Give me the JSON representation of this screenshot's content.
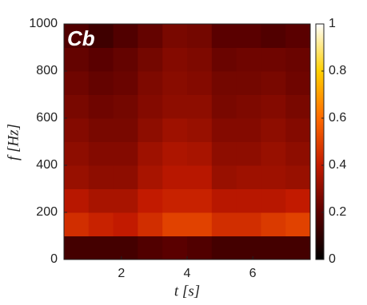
{
  "chart_data": {
    "type": "heatmap",
    "title": "Cb",
    "xlabel": "t [s]",
    "ylabel": "f [Hz]",
    "xbins": [
      0.25,
      1.0,
      1.75,
      2.5,
      3.25,
      4.0,
      4.75,
      5.5,
      6.25,
      7.0,
      7.75
    ],
    "ybins": [
      0,
      100,
      200,
      300,
      400,
      500,
      600,
      700,
      800,
      900,
      1000
    ],
    "z": [
      [
        0.15,
        0.15,
        0.15,
        0.18,
        0.2,
        0.18,
        0.15,
        0.15,
        0.15,
        0.15
      ],
      [
        0.45,
        0.42,
        0.4,
        0.45,
        0.5,
        0.5,
        0.45,
        0.45,
        0.48,
        0.5
      ],
      [
        0.38,
        0.35,
        0.35,
        0.4,
        0.42,
        0.42,
        0.38,
        0.38,
        0.38,
        0.4
      ],
      [
        0.32,
        0.3,
        0.3,
        0.35,
        0.38,
        0.38,
        0.32,
        0.33,
        0.33,
        0.32
      ],
      [
        0.3,
        0.28,
        0.28,
        0.33,
        0.36,
        0.35,
        0.3,
        0.3,
        0.32,
        0.3
      ],
      [
        0.28,
        0.26,
        0.26,
        0.3,
        0.33,
        0.32,
        0.28,
        0.28,
        0.3,
        0.28
      ],
      [
        0.26,
        0.24,
        0.25,
        0.28,
        0.3,
        0.3,
        0.26,
        0.27,
        0.28,
        0.26
      ],
      [
        0.24,
        0.22,
        0.23,
        0.27,
        0.29,
        0.28,
        0.25,
        0.25,
        0.26,
        0.24
      ],
      [
        0.22,
        0.2,
        0.22,
        0.25,
        0.28,
        0.27,
        0.23,
        0.24,
        0.24,
        0.23
      ],
      [
        0.18,
        0.14,
        0.18,
        0.22,
        0.26,
        0.25,
        0.2,
        0.2,
        0.18,
        0.2
      ]
    ],
    "xlim": [
      0.25,
      7.75
    ],
    "xticks": [
      2,
      4,
      6
    ],
    "ylim": [
      0,
      1000
    ],
    "yticks": [
      0,
      200,
      400,
      600,
      800,
      1000
    ],
    "zlim": [
      0,
      1
    ],
    "zticks": [
      0,
      0.2,
      0.4,
      0.6,
      0.8,
      1
    ],
    "colormap": [
      "#000000",
      "#5a0000",
      "#c21a00",
      "#ff6a00",
      "#ffd000",
      "#ffffff"
    ]
  }
}
